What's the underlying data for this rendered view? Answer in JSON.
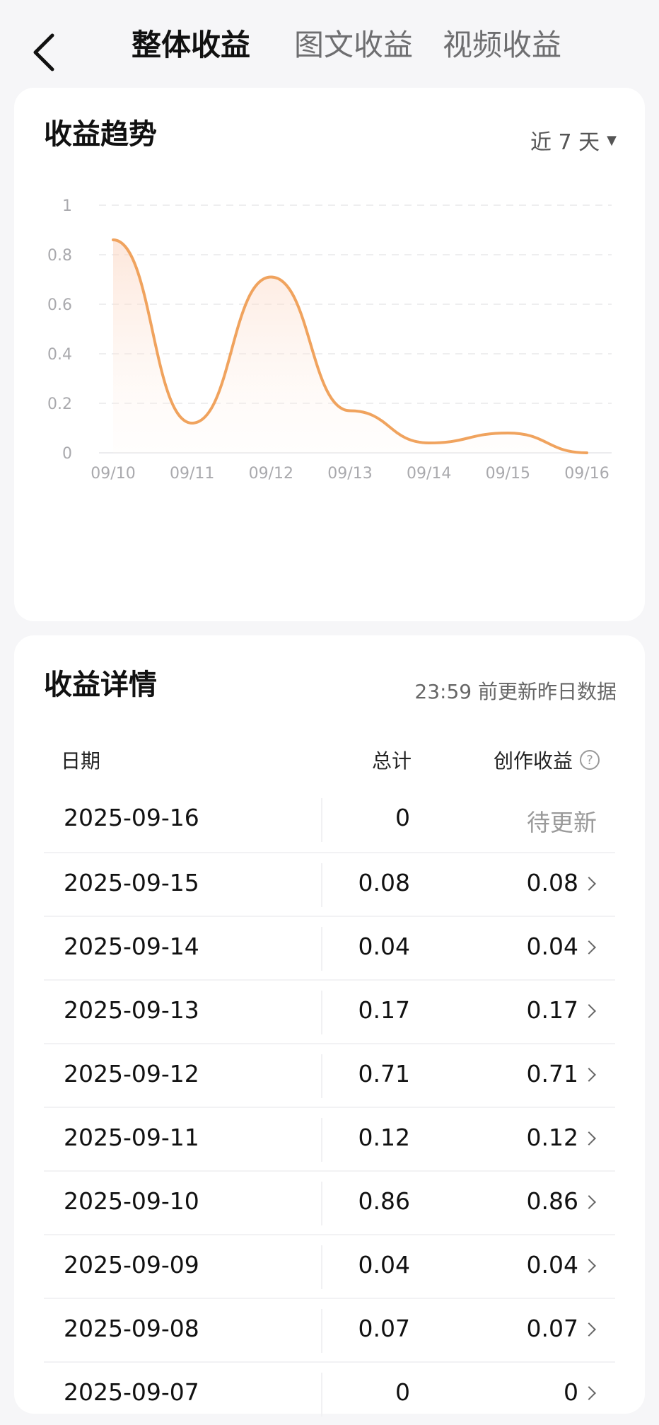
{
  "header": {
    "tabs": [
      {
        "label": "整体收益"
      },
      {
        "label": "图文收益"
      },
      {
        "label": "视频收益"
      }
    ]
  },
  "trend": {
    "title": "收益趋势",
    "range_label": "近 7 天"
  },
  "chart_data": {
    "type": "line",
    "title": "",
    "xlabel": "",
    "ylabel": "",
    "categories": [
      "09/10",
      "09/11",
      "09/12",
      "09/13",
      "09/14",
      "09/15",
      "09/16"
    ],
    "series": [
      {
        "values": [
          0.86,
          0.12,
          0.71,
          0.17,
          0.04,
          0.08,
          0
        ]
      }
    ],
    "ylim": [
      0,
      1
    ],
    "yticks": [
      "1",
      "0.8",
      "0.6",
      "0.4",
      "0.2",
      "0"
    ],
    "grid": true,
    "line_color": "#f0a35e"
  },
  "detail": {
    "title": "收益详情",
    "update_note": "23:59 前更新昨日数据",
    "columns": {
      "date": "日期",
      "total": "总计",
      "creation": "创作收益"
    },
    "help_glyph": "?",
    "rows": [
      {
        "date": "2025-09-16",
        "total": "0",
        "creation": "待更新"
      },
      {
        "date": "2025-09-15",
        "total": "0.08",
        "creation": "0.08"
      },
      {
        "date": "2025-09-14",
        "total": "0.04",
        "creation": "0.04"
      },
      {
        "date": "2025-09-13",
        "total": "0.17",
        "creation": "0.17"
      },
      {
        "date": "2025-09-12",
        "total": "0.71",
        "creation": "0.71"
      },
      {
        "date": "2025-09-11",
        "total": "0.12",
        "creation": "0.12"
      },
      {
        "date": "2025-09-10",
        "total": "0.86",
        "creation": "0.86"
      },
      {
        "date": "2025-09-09",
        "total": "0.04",
        "creation": "0.04"
      },
      {
        "date": "2025-09-08",
        "total": "0.07",
        "creation": "0.07"
      },
      {
        "date": "2025-09-07",
        "total": "0",
        "creation": "0"
      }
    ]
  }
}
